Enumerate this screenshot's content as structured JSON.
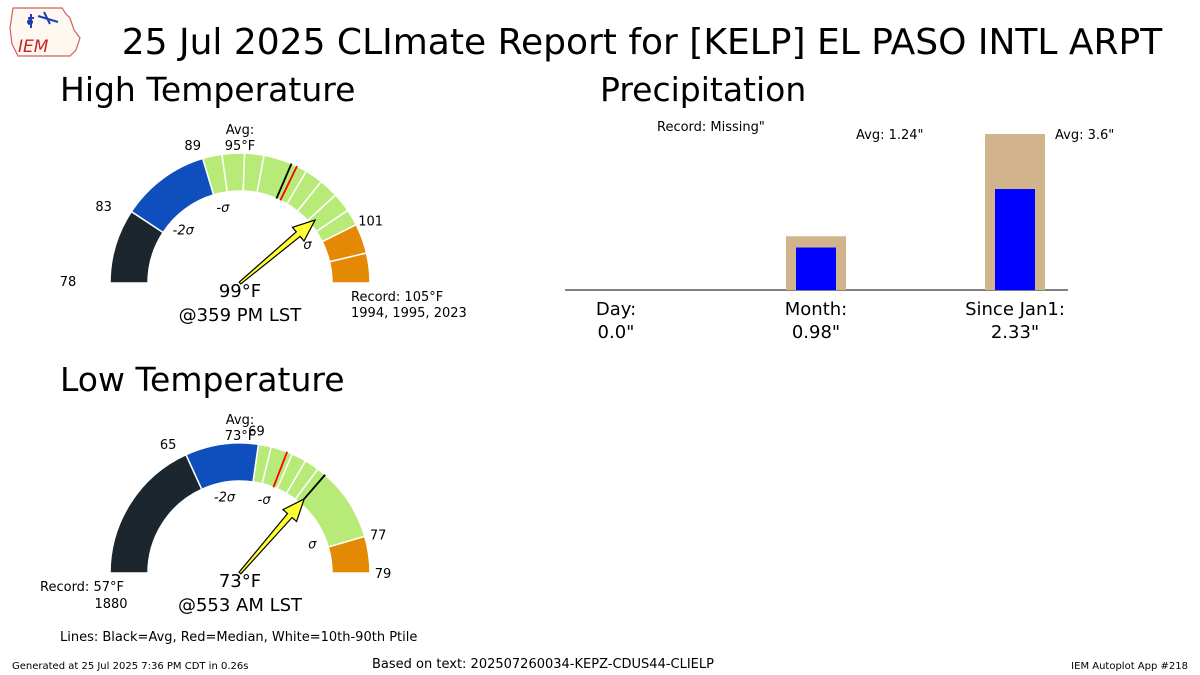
{
  "logo": {
    "text": "IEM"
  },
  "title": "25 Jul 2025 CLImate Report for [KELP] EL PASO INTL ARPT",
  "high": {
    "heading": "High Temperature",
    "scale_min": 78,
    "scale_max": 105,
    "value": 99,
    "value_label": "99",
    "time_label": "@359 PM LST",
    "avg": 95,
    "avg_label": "Avg:",
    "avg_value_label": "95",
    "median": 95.4,
    "ptiles": [
      90.3,
      91.8,
      93.1,
      96.1,
      97.3,
      98.6,
      99.9
    ],
    "bands": [
      {
        "from": 78,
        "to": 83,
        "color": "#1b262e"
      },
      {
        "from": 83,
        "to": 89,
        "color": "#0f4fbd"
      },
      {
        "from": 89,
        "to": 101,
        "color": "#b8ea77"
      },
      {
        "from": 101,
        "to": 103,
        "color": "#e48903"
      },
      {
        "from": 103,
        "to": 105,
        "color": "#e48903"
      }
    ],
    "ticks": [
      {
        "value": 78,
        "label": "78"
      },
      {
        "value": 83,
        "label": "83"
      },
      {
        "value": 89,
        "label": "89"
      },
      {
        "value": 101,
        "label": "101"
      }
    ],
    "sigma_marks": [
      {
        "value": 84.5,
        "label": "-2σ"
      },
      {
        "value": 89.6,
        "label": "-σ"
      },
      {
        "value": 100.5,
        "label": "σ"
      }
    ],
    "record_label": "Record: 105",
    "record_years": "1994, 1995, 2023"
  },
  "low": {
    "heading": "Low Temperature",
    "scale_min": 57,
    "scale_max": 79,
    "value": 73,
    "value_label": "73",
    "time_label": "@553 AM LST",
    "avg": 73,
    "avg_label": "Avg:",
    "avg_value_label": "73",
    "median": 70.6,
    "ptiles": [
      69.7,
      70.9,
      71.7,
      72.5
    ],
    "bands": [
      {
        "from": 57,
        "to": 65,
        "color": "#1b262e"
      },
      {
        "from": 65,
        "to": 69,
        "color": "#0f4fbd"
      },
      {
        "from": 69,
        "to": 77,
        "color": "#b8ea77"
      },
      {
        "from": 77,
        "to": 79,
        "color": "#e48903"
      }
    ],
    "ticks": [
      {
        "value": 65,
        "label": "65"
      },
      {
        "value": 69,
        "label": "69"
      },
      {
        "value": 77,
        "label": "77"
      },
      {
        "value": 79,
        "label": "79"
      }
    ],
    "sigma_marks": [
      {
        "value": 66.6,
        "label": "-2σ"
      },
      {
        "value": 70.2,
        "label": "-σ"
      },
      {
        "value": 76.3,
        "label": "σ"
      }
    ],
    "record_label": "Record: 57",
    "record_years": "1880"
  },
  "chart_data": {
    "type": "bar",
    "title": "Precipitation",
    "categories": [
      "Day:",
      "Month:",
      "Since Jan1:"
    ],
    "series": [
      {
        "values": [
          null,
          1.24,
          3.6
        ],
        "color": "#d2b48c"
      },
      {
        "values": [
          0.0,
          0.98,
          2.33
        ],
        "color": "#0000ff"
      }
    ],
    "ylim": [
      0,
      4.0
    ],
    "value_labels": [
      "0.0\"",
      "0.98\"",
      "2.33\""
    ],
    "annotations": [
      "Record: Missing\"",
      "Avg: 1.24\"",
      "Avg: 3.6\""
    ]
  },
  "legend_note": "Lines: Black=Avg, Red=Median, White=10th-90th Ptile",
  "footer": {
    "generated": "Generated at 25 Jul 2025 7:36 PM CDT in 0.26s",
    "based_on": "Based on text: 202507260034-KEPZ-CDUS44-CLIELP",
    "app": "IEM Autoplot App #218"
  },
  "colors": {
    "needle": "#ffff33",
    "median": "#ff0000",
    "avg": "#000000",
    "ptile": "#ffffff"
  },
  "degree_unit": "°F"
}
